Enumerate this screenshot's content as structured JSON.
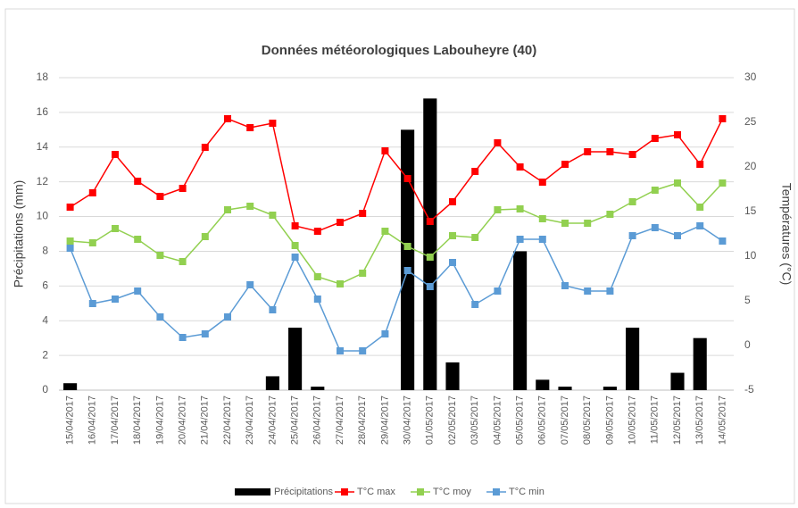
{
  "chart_data": {
    "type": "combo",
    "title": "Données météorologiques Labouheyre (40)",
    "ylabel": "Précipitations (mm)",
    "y2label": "Températures (°C)",
    "categories": [
      "15/04/2017",
      "16/04/2017",
      "17/04/2017",
      "18/04/2017",
      "19/04/2017",
      "20/04/2017",
      "21/04/2017",
      "22/04/2017",
      "23/04/2017",
      "24/04/2017",
      "25/04/2017",
      "26/04/2017",
      "27/04/2017",
      "28/04/2017",
      "29/04/2017",
      "30/04/2017",
      "01/05/2017",
      "02/05/2017",
      "03/05/2017",
      "04/05/2017",
      "05/05/2017",
      "06/05/2017",
      "07/05/2017",
      "08/05/2017",
      "09/05/2017",
      "10/05/2017",
      "11/05/2017",
      "12/05/2017",
      "13/05/2017",
      "14/05/2017"
    ],
    "series": [
      {
        "name": "Précipitations",
        "type": "bar",
        "color": "#000000",
        "axis": "y",
        "values": [
          0.4,
          0,
          0,
          0,
          0,
          0,
          0,
          0,
          0,
          0.8,
          3.6,
          0.2,
          0,
          0,
          0,
          15,
          16.8,
          1.6,
          0,
          0,
          8,
          0.6,
          0.2,
          0,
          0.2,
          3.6,
          0,
          1,
          3,
          0
        ]
      },
      {
        "name": "T°C max",
        "type": "line",
        "color": "#ff0000",
        "axis": "y2",
        "values": [
          15.5,
          17.1,
          21.4,
          18.4,
          16.7,
          17.6,
          22.2,
          25.4,
          24.4,
          24.9,
          13.4,
          12.8,
          13.8,
          14.8,
          21.8,
          18.7,
          13.9,
          16.1,
          19.5,
          22.7,
          20.0,
          18.3,
          20.3,
          21.7,
          21.7,
          21.4,
          23.2,
          23.6,
          20.3,
          25.4
        ]
      },
      {
        "name": "T°C moy",
        "type": "line",
        "color": "#92d050",
        "axis": "y2",
        "values": [
          11.7,
          11.5,
          13.1,
          11.9,
          10.1,
          9.4,
          12.2,
          15.2,
          15.6,
          14.6,
          11.2,
          7.7,
          6.9,
          8.1,
          12.8,
          11.1,
          9.9,
          12.3,
          12.1,
          15.2,
          15.3,
          14.2,
          13.7,
          13.7,
          14.7,
          16.1,
          17.4,
          18.2,
          15.5,
          18.2
        ]
      },
      {
        "name": "T°C min",
        "type": "line",
        "color": "#5b9bd5",
        "axis": "y2",
        "values": [
          10.9,
          4.7,
          5.2,
          6.1,
          3.2,
          0.9,
          1.3,
          3.2,
          6.8,
          4.0,
          9.9,
          5.2,
          -0.6,
          -0.6,
          1.3,
          8.4,
          6.6,
          9.3,
          4.6,
          6.1,
          11.9,
          11.9,
          6.7,
          6.1,
          6.1,
          12.3,
          13.2,
          12.3,
          13.4,
          11.7
        ]
      }
    ],
    "ylim": [
      0,
      18
    ],
    "yticks": [
      0,
      2,
      4,
      6,
      8,
      10,
      12,
      14,
      16,
      18
    ],
    "y2lim": [
      -5,
      30
    ],
    "y2ticks": [
      -5,
      0,
      5,
      10,
      15,
      20,
      25,
      30
    ],
    "grid": true,
    "legend": "bottom"
  }
}
